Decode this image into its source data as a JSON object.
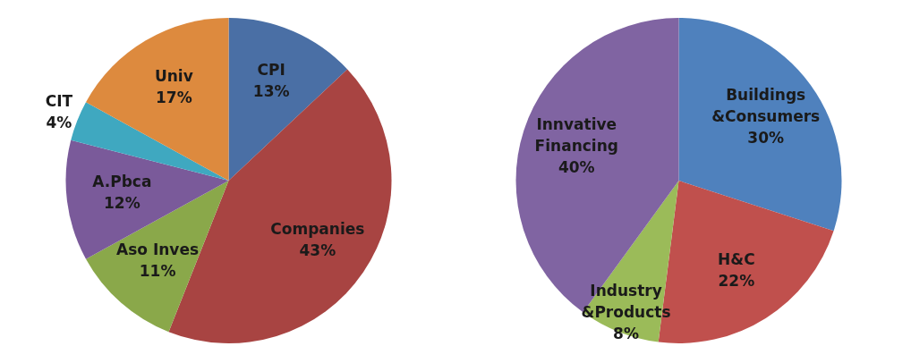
{
  "chart_data": [
    {
      "type": "pie",
      "categories": [
        "CPI",
        "Companies",
        "Aso Inves",
        "A.Pbca",
        "CIT",
        "Univ"
      ],
      "values": [
        13,
        43,
        11,
        12,
        4,
        17
      ],
      "colors": [
        "#4a6fa5",
        "#a84442",
        "#8aa84a",
        "#7a5a9a",
        "#3fa8c0",
        "#dd8a3e"
      ],
      "value_labels": [
        "13%",
        "43%",
        "11%",
        "12%",
        "4%",
        "17%"
      ],
      "legend": false
    },
    {
      "type": "pie",
      "categories": [
        "Buildings\n&Consumers",
        "H&C",
        "Industry\n&Products",
        "Innvative\nFinancing"
      ],
      "values": [
        30,
        22,
        8,
        40
      ],
      "colors": [
        "#4f81bd",
        "#c0504d",
        "#9bbb59",
        "#8064a2"
      ],
      "value_labels": [
        "30%",
        "22%",
        "8%",
        "40%"
      ],
      "legend": false
    }
  ]
}
